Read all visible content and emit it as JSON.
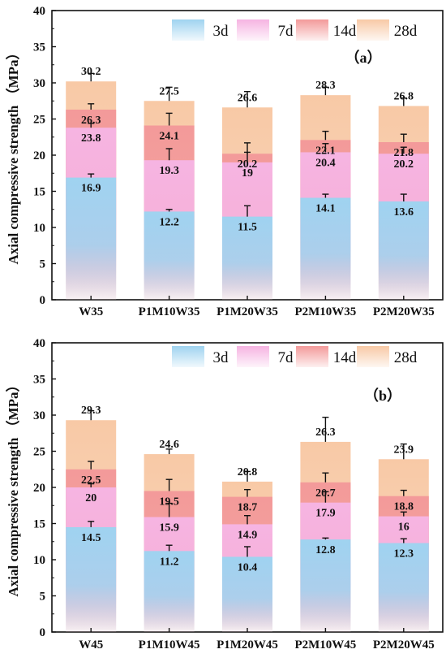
{
  "chart_data": [
    {
      "type": "bar",
      "panel_label": "（a）",
      "ylabel": "Axial compressive strength （MPa）",
      "ylim": [
        0,
        40
      ],
      "yticks": [
        0,
        5,
        10,
        15,
        20,
        25,
        30,
        35,
        40
      ],
      "categories": [
        "W35",
        "P1M10W35",
        "P1M20W35",
        "P2M10W35",
        "P2M20W35"
      ],
      "legend_position": "top-right",
      "series": [
        {
          "name": "3d",
          "color": "#9fd3f0",
          "values": [
            16.9,
            12.2,
            11.5,
            14.1,
            13.6
          ],
          "errors": [
            0.5,
            0.3,
            1.5,
            0.5,
            1.0
          ]
        },
        {
          "name": "7d",
          "color": "#f6b4e2",
          "values": [
            23.8,
            19.3,
            19.0,
            20.4,
            20.2
          ],
          "errors": [
            0.6,
            1.6,
            1.4,
            1.2,
            0.9
          ]
        },
        {
          "name": "14d",
          "color": "#f39a9a",
          "values": [
            26.3,
            24.1,
            20.2,
            22.1,
            21.8
          ],
          "errors": [
            0.8,
            1.7,
            1.5,
            1.2,
            1.1
          ]
        },
        {
          "name": "28d",
          "color": "#f8c9a6",
          "values": [
            30.2,
            27.5,
            26.6,
            28.3,
            26.8
          ],
          "errors": [
            1.1,
            1.9,
            2.2,
            1.1,
            1.1
          ]
        }
      ]
    },
    {
      "type": "bar",
      "panel_label": "（b）",
      "ylabel": "Axial compressive strength （MPa）",
      "ylim": [
        0,
        40
      ],
      "yticks": [
        0,
        5,
        10,
        15,
        20,
        25,
        30,
        35,
        40
      ],
      "categories": [
        "W45",
        "P1M10W45",
        "P1M20W45",
        "P2M10W45",
        "P2M20W45"
      ],
      "legend_position": "top-right",
      "series": [
        {
          "name": "3d",
          "color": "#9fd3f0",
          "values": [
            14.5,
            11.2,
            10.4,
            12.8,
            12.3
          ],
          "errors": [
            0.8,
            0.8,
            1.4,
            0.2,
            0.6
          ]
        },
        {
          "name": "7d",
          "color": "#f6b4e2",
          "values": [
            20.0,
            15.9,
            14.9,
            17.9,
            16.0
          ],
          "errors": [
            0.5,
            1.9,
            1.2,
            1.5,
            0.6
          ]
        },
        {
          "name": "14d",
          "color": "#f39a9a",
          "values": [
            22.5,
            19.5,
            18.7,
            20.7,
            18.8
          ],
          "errors": [
            1.1,
            1.6,
            1.0,
            1.3,
            0.8
          ]
        },
        {
          "name": "28d",
          "color": "#f8c9a6",
          "values": [
            29.3,
            24.6,
            20.8,
            26.3,
            23.9
          ],
          "errors": [
            1.3,
            0.7,
            1.4,
            3.4,
            2.1
          ]
        }
      ]
    }
  ]
}
